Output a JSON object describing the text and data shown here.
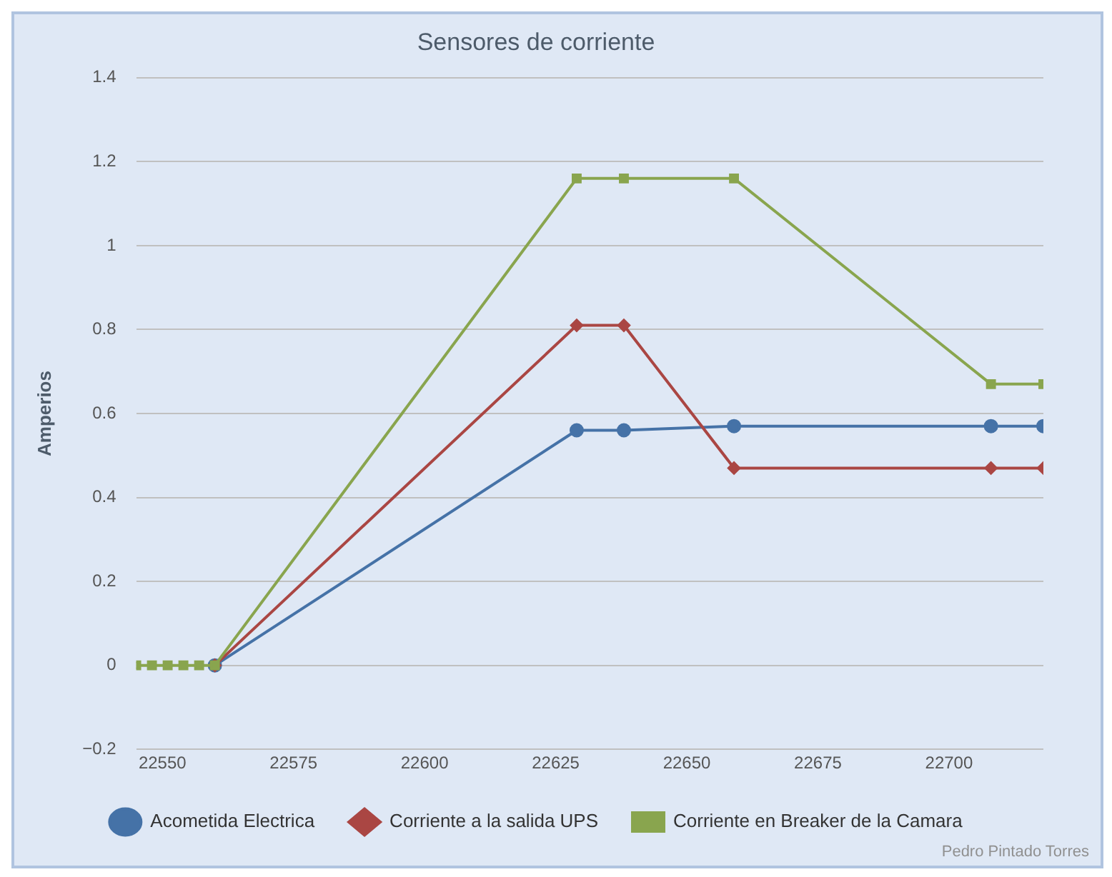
{
  "chart_data": {
    "type": "line",
    "title": "Sensores de corriente",
    "ylabel": "Amperios",
    "xlim": [
      22545,
      22718
    ],
    "xticks": [
      22550,
      22575,
      22600,
      22625,
      22650,
      22675,
      22700
    ],
    "ylim": [
      -0.2,
      1.4
    ],
    "yticks": [
      -0.2,
      0,
      0.2,
      0.4,
      0.6,
      0.8,
      1,
      1.2,
      1.4
    ],
    "grid": "y",
    "legend": "bottom",
    "annotations": [
      "Pedro Pintado Torres"
    ],
    "x": [
      22545,
      22548,
      22551,
      22554,
      22557,
      22560,
      22629,
      22638,
      22659,
      22708,
      22718
    ],
    "series": [
      {
        "name": "Acometida Electrica",
        "color": "#4572a7",
        "marker": "circle",
        "values": [
          null,
          null,
          null,
          null,
          null,
          0,
          0.56,
          0.56,
          0.57,
          0.57,
          0.57
        ]
      },
      {
        "name": "Corriente a la salida UPS",
        "color": "#aa4643",
        "marker": "diamond",
        "values": [
          null,
          null,
          null,
          null,
          null,
          0,
          0.81,
          0.81,
          0.47,
          0.47,
          0.47
        ]
      },
      {
        "name": "Corriente en Breaker de la Camara",
        "color": "#89a54e",
        "marker": "square",
        "values": [
          0,
          0,
          0,
          0,
          0,
          0,
          1.16,
          1.16,
          1.16,
          0.67,
          0.67
        ]
      }
    ]
  }
}
